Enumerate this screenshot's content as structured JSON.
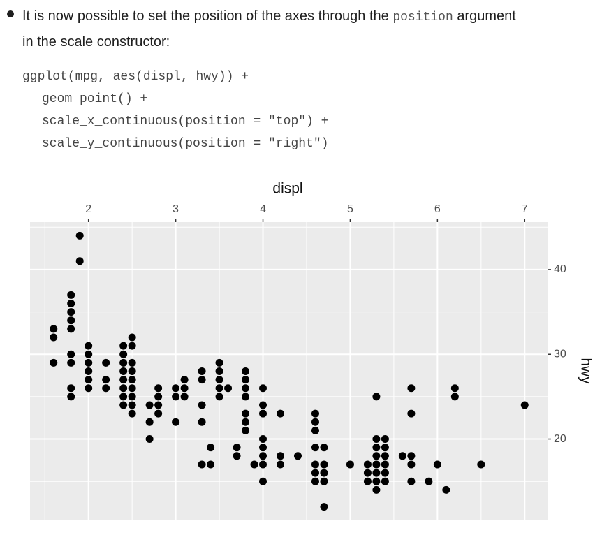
{
  "document": {
    "bullet": {
      "text_before": "It is now possible to set the position of the axes through the",
      "code": "position",
      "text_after": "argument",
      "text_line2": "in the scale constructor:"
    },
    "code_lines": [
      "ggplot(mpg, aes(displ, hwy)) +",
      "geom_point() +",
      "scale_x_continuous(position = \"top\") +",
      "scale_y_continuous(position = \"right\")"
    ]
  },
  "chart_data": {
    "type": "scatter",
    "x_label": "displ",
    "y_label": "hwy",
    "x": [
      1.6,
      1.6,
      1.6,
      1.8,
      1.8,
      1.8,
      1.8,
      1.8,
      1.8,
      1.8,
      1.8,
      1.8,
      1.9,
      1.9,
      2.0,
      2.0,
      2.0,
      2.0,
      2.0,
      2.0,
      2.2,
      2.2,
      2.2,
      2.4,
      2.4,
      2.4,
      2.4,
      2.4,
      2.4,
      2.4,
      2.4,
      2.5,
      2.5,
      2.5,
      2.5,
      2.5,
      2.5,
      2.5,
      2.5,
      2.5,
      2.7,
      2.7,
      2.7,
      2.8,
      2.8,
      2.8,
      2.8,
      3.0,
      3.0,
      3.0,
      3.1,
      3.1,
      3.1,
      3.3,
      3.3,
      3.3,
      3.3,
      3.3,
      3.4,
      3.4,
      3.5,
      3.5,
      3.5,
      3.5,
      3.5,
      3.6,
      3.7,
      3.7,
      3.8,
      3.8,
      3.8,
      3.8,
      3.8,
      3.8,
      3.8,
      3.9,
      4.0,
      4.0,
      4.0,
      4.0,
      4.0,
      4.0,
      4.0,
      4.0,
      4.2,
      4.2,
      4.2,
      4.4,
      4.6,
      4.6,
      4.6,
      4.6,
      4.6,
      4.6,
      4.6,
      4.7,
      4.7,
      4.7,
      4.7,
      4.7,
      5.0,
      5.2,
      5.2,
      5.2,
      5.3,
      5.3,
      5.3,
      5.3,
      5.3,
      5.3,
      5.3,
      5.3,
      5.4,
      5.4,
      5.4,
      5.4,
      5.4,
      5.4,
      5.6,
      5.7,
      5.7,
      5.7,
      5.7,
      5.7,
      5.9,
      6.0,
      6.1,
      6.2,
      6.2,
      6.5,
      7.0
    ],
    "values": [
      33,
      32,
      29,
      37,
      36,
      35,
      34,
      33,
      30,
      29,
      26,
      25,
      44,
      41,
      31,
      30,
      29,
      28,
      27,
      26,
      29,
      27,
      26,
      31,
      30,
      29,
      28,
      27,
      26,
      25,
      24,
      32,
      31,
      29,
      28,
      27,
      26,
      25,
      24,
      23,
      24,
      22,
      20,
      26,
      25,
      24,
      23,
      26,
      25,
      22,
      27,
      26,
      25,
      28,
      27,
      24,
      22,
      17,
      19,
      17,
      29,
      28,
      27,
      26,
      25,
      26,
      19,
      18,
      28,
      27,
      26,
      25,
      23,
      22,
      21,
      17,
      26,
      24,
      23,
      20,
      19,
      18,
      17,
      15,
      23,
      18,
      17,
      18,
      23,
      22,
      21,
      19,
      17,
      16,
      15,
      19,
      17,
      16,
      15,
      12,
      17,
      17,
      16,
      15,
      25,
      20,
      19,
      18,
      17,
      16,
      15,
      14,
      20,
      19,
      18,
      17,
      16,
      15,
      18,
      26,
      23,
      18,
      17,
      15,
      15,
      17,
      14,
      26,
      25,
      17,
      24
    ],
    "color": "#000000",
    "xlim": [
      1.33,
      7.27
    ],
    "xticks": [
      2,
      3,
      4,
      5,
      6,
      7
    ],
    "ylim": [
      10.4,
      45.6
    ],
    "yticks": [
      20,
      30,
      40
    ],
    "x_axis_position": "top",
    "y_axis_position": "right",
    "grid": true
  }
}
